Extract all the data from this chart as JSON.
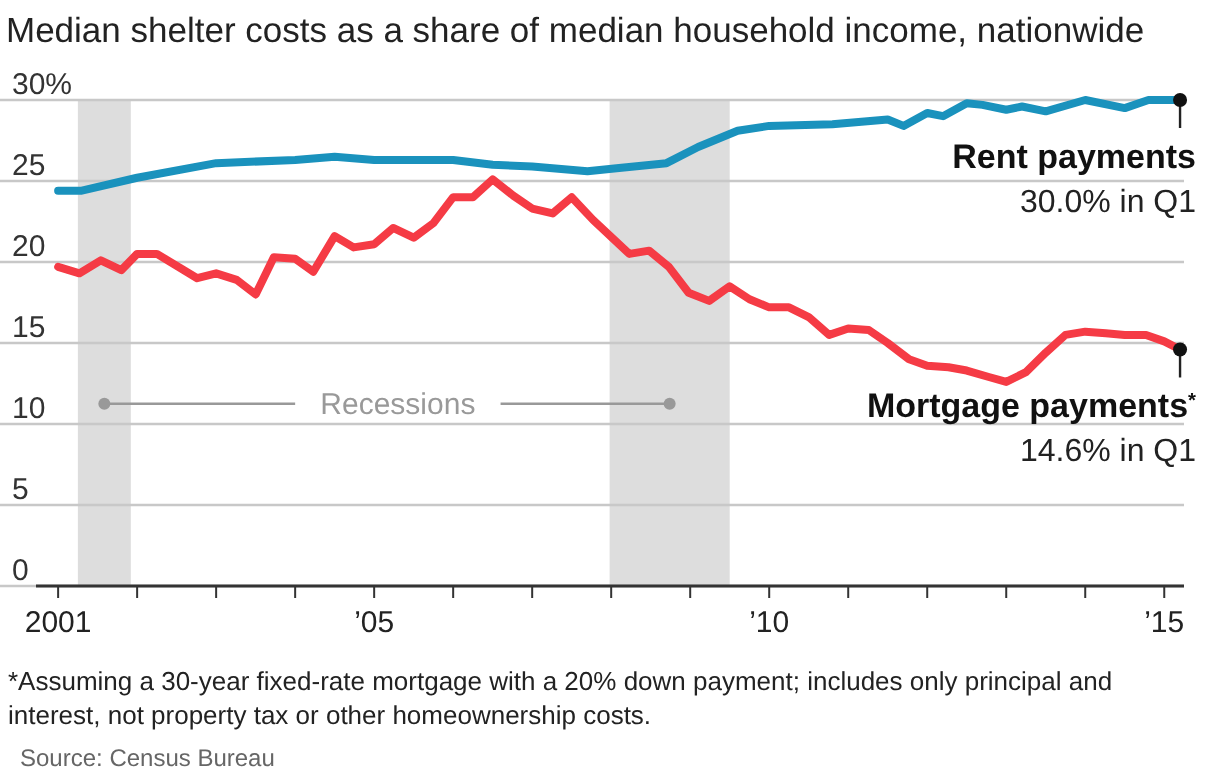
{
  "chart_data": {
    "type": "line",
    "title": "Median shelter costs as a share of median household income, nationwide",
    "xlim": [
      2000.72,
      2015.25
    ],
    "xticks": [
      {
        "value": 2001,
        "label": "2001"
      },
      {
        "value": 2002,
        "label": null
      },
      {
        "value": 2003,
        "label": null
      },
      {
        "value": 2004,
        "label": null
      },
      {
        "value": 2005,
        "label": "’05"
      },
      {
        "value": 2006,
        "label": null
      },
      {
        "value": 2007,
        "label": null
      },
      {
        "value": 2008,
        "label": null
      },
      {
        "value": 2009,
        "label": null
      },
      {
        "value": 2010,
        "label": "’10"
      },
      {
        "value": 2011,
        "label": null
      },
      {
        "value": 2012,
        "label": null
      },
      {
        "value": 2013,
        "label": null
      },
      {
        "value": 2014,
        "label": null
      },
      {
        "value": 2015,
        "label": "’15"
      }
    ],
    "ylim": [
      0,
      30
    ],
    "yticks": [
      0,
      5,
      10,
      15,
      20,
      25,
      {
        "value": 30,
        "label": "30%"
      }
    ],
    "grid": "y",
    "line_style": "solid",
    "series": [
      {
        "name": "Rent payments",
        "color": "#1a92bd",
        "x": [
          2001.0,
          2001.3,
          2002.0,
          2003.0,
          2004.0,
          2004.5,
          2005.0,
          2006.0,
          2006.5,
          2007.0,
          2007.7,
          2008.1,
          2008.7,
          2009.1,
          2009.6,
          2010.0,
          2010.8,
          2011.5,
          2011.7,
          2012.0,
          2012.2,
          2012.5,
          2012.7,
          2013.0,
          2013.2,
          2013.5,
          2014.0,
          2014.5,
          2014.8,
          2015.2
        ],
        "values": [
          24.4,
          24.4,
          25.2,
          26.1,
          26.3,
          26.5,
          26.3,
          26.3,
          26.0,
          25.9,
          25.6,
          25.8,
          26.1,
          27.1,
          28.1,
          28.4,
          28.5,
          28.8,
          28.4,
          29.2,
          29.0,
          29.8,
          29.7,
          29.4,
          29.6,
          29.3,
          30.0,
          29.5,
          30.0,
          30.0
        ],
        "value_labels": [
          null,
          null,
          null,
          null,
          null,
          null,
          null,
          null,
          null,
          null,
          null,
          null,
          null,
          null,
          null,
          null,
          null,
          null,
          null,
          null,
          null,
          null,
          null,
          null,
          null,
          null,
          null,
          null,
          null,
          "30.0% in Q1"
        ]
      },
      {
        "name": "Mortgage payments$^{*}$",
        "color": "#f53b45",
        "x": [
          2001.0,
          2001.27,
          2001.54,
          2001.8,
          2002.0,
          2002.25,
          2002.76,
          2003.0,
          2003.26,
          2003.5,
          2003.73,
          2004.0,
          2004.23,
          2004.5,
          2004.74,
          2005.0,
          2005.24,
          2005.5,
          2005.75,
          2006.0,
          2006.25,
          2006.5,
          2006.76,
          2007.0,
          2007.26,
          2007.5,
          2007.77,
          2008.23,
          2008.48,
          2008.73,
          2008.98,
          2009.24,
          2009.5,
          2009.75,
          2010.0,
          2010.25,
          2010.5,
          2010.76,
          2011.0,
          2011.26,
          2011.5,
          2011.77,
          2012.0,
          2012.27,
          2012.5,
          2012.78,
          2013.0,
          2013.25,
          2013.5,
          2013.75,
          2014.0,
          2014.26,
          2014.5,
          2014.77,
          2015.0,
          2015.2
        ],
        "values": [
          19.7,
          19.3,
          20.1,
          19.5,
          20.5,
          20.5,
          19.0,
          19.3,
          18.9,
          18.0,
          20.3,
          20.2,
          19.4,
          21.6,
          20.9,
          21.1,
          22.1,
          21.5,
          22.4,
          24.0,
          24.0,
          25.1,
          24.1,
          23.3,
          23.0,
          24.0,
          22.6,
          20.5,
          20.7,
          19.7,
          18.1,
          17.6,
          18.5,
          17.7,
          17.2,
          17.2,
          16.6,
          15.5,
          15.9,
          15.8,
          15.0,
          14.0,
          13.6,
          13.5,
          13.3,
          12.9,
          12.6,
          13.2,
          14.4,
          15.5,
          15.7,
          15.6,
          15.5,
          15.5,
          15.1,
          14.6
        ],
        "value_labels": [
          null,
          null,
          null,
          null,
          null,
          null,
          null,
          null,
          null,
          null,
          null,
          null,
          null,
          null,
          null,
          null,
          null,
          null,
          null,
          null,
          null,
          null,
          null,
          null,
          null,
          null,
          null,
          null,
          null,
          null,
          null,
          null,
          null,
          null,
          null,
          null,
          null,
          null,
          null,
          null,
          null,
          null,
          null,
          null,
          null,
          null,
          null,
          null,
          null,
          null,
          null,
          null,
          null,
          null,
          null,
          "14.6% in Q1"
        ]
      }
    ],
    "bands": [
      {
        "axis": "x",
        "from": 2001.25,
        "to": 2001.92,
        "color": "#dddddd"
      },
      {
        "axis": "x",
        "from": 2007.98,
        "to": 2009.5,
        "color": "#dddddd"
      }
    ],
    "annotations": [
      "Recessions",
      "*Assuming a 30-year fixed-rate mortgage with a 20% down payment; includes only principal and interest, not property tax or other homeownership costs.",
      "Source: Census Bureau"
    ]
  }
}
